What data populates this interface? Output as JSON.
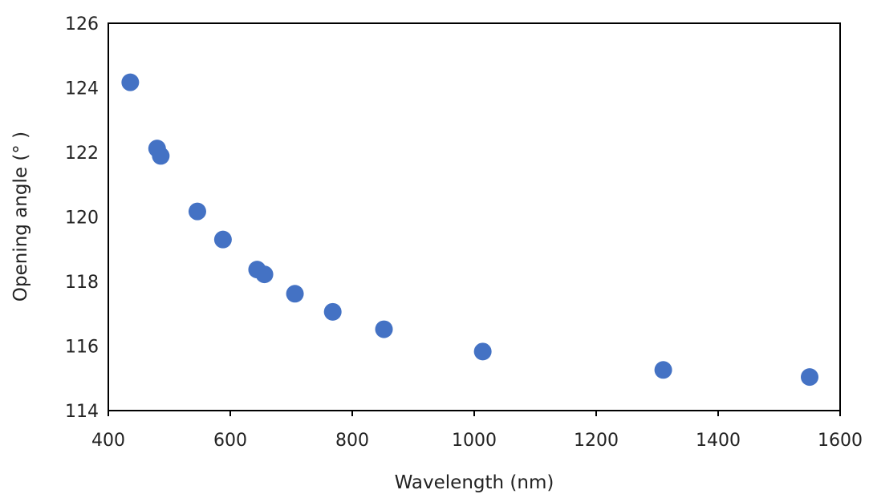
{
  "chart_data": {
    "type": "scatter",
    "title": "",
    "xlabel": "Wavelength (nm)",
    "ylabel": "Opening angle (° )",
    "xlim": [
      400,
      1600
    ],
    "ylim": [
      114,
      126
    ],
    "x_ticks": [
      "400",
      "600",
      "800",
      "1000",
      "1200",
      "1400",
      "1600"
    ],
    "y_ticks": [
      "114",
      "116",
      "118",
      "120",
      "122",
      "124",
      "126"
    ],
    "grid": false,
    "marker_color": "#4472C4",
    "series": [
      {
        "points": [
          {
            "x": 436,
            "y": 124.17
          },
          {
            "x": 480,
            "y": 122.12
          },
          {
            "x": 486,
            "y": 121.89
          },
          {
            "x": 546,
            "y": 120.17
          },
          {
            "x": 588,
            "y": 119.3
          },
          {
            "x": 644,
            "y": 118.37
          },
          {
            "x": 656,
            "y": 118.22
          },
          {
            "x": 706,
            "y": 117.62
          },
          {
            "x": 768,
            "y": 117.06
          },
          {
            "x": 852,
            "y": 116.52
          },
          {
            "x": 1014,
            "y": 115.83
          },
          {
            "x": 1310,
            "y": 115.26
          },
          {
            "x": 1550,
            "y": 115.04
          }
        ]
      }
    ]
  }
}
